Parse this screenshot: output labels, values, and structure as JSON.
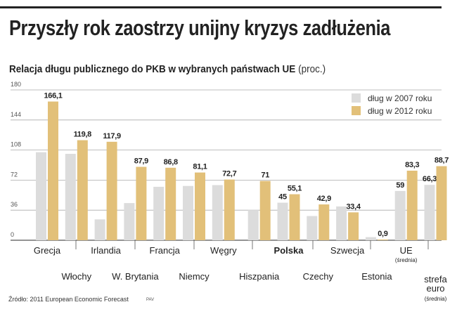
{
  "title": "Przyszły rok zaostrzy unijny kryzys zadłużenia",
  "subtitle": "Relacja długu publicznego do PKB w wybranych państwach UE",
  "subtitle_unit": "(proc.)",
  "source": "Źródło: 2011 European Economic Forecast",
  "signature": "PAV",
  "colors": {
    "series_2007": "#dcdcdc",
    "series_2012": "#e2c079"
  },
  "chart_data": {
    "type": "bar",
    "title": "Relacja długu publicznego do PKB w wybranych państwach UE (proc.)",
    "ylim": [
      0,
      180
    ],
    "yticks": [
      "0",
      "36",
      "72",
      "108",
      "144",
      "180"
    ],
    "grid": true,
    "legend_placement": "top-right",
    "categories": [
      [
        "Grecja"
      ],
      [
        "Włochy"
      ],
      [
        "Irlandia"
      ],
      [
        "W. Brytania"
      ],
      [
        "Francja"
      ],
      [
        "Niemcy"
      ],
      [
        "Węgry"
      ],
      [
        "Hiszpania"
      ],
      [
        "Polska"
      ],
      [
        "Czechy"
      ],
      [
        "Szwecja"
      ],
      [
        "Estonia"
      ],
      [
        "UE",
        "(średnia)"
      ],
      [
        "strefa",
        "euro",
        "(średnia)"
      ]
    ],
    "series": [
      {
        "name": "dług w 2007 roku",
        "values": [
          105.4,
          103.5,
          25,
          44.5,
          64,
          65,
          66,
          36.1,
          45,
          29,
          40.5,
          3.7,
          59,
          66.3
        ],
        "labels": [
          "",
          "",
          "",
          "",
          "",
          "",
          "",
          "",
          "45",
          "",
          "",
          "",
          "59",
          "66,3"
        ]
      },
      {
        "name": "dług w 2012 roku",
        "values": [
          166.1,
          119.8,
          117.9,
          87.9,
          86.8,
          81.1,
          72.7,
          71,
          55.1,
          42.9,
          33.4,
          0.9,
          83.3,
          88.7
        ],
        "labels": [
          "166,1",
          "119,8",
          "117,9",
          "87,9",
          "86,8",
          "81,1",
          "72,7",
          "71",
          "55,1",
          "42,9",
          "33,4",
          "0,9",
          "83,3",
          "88,7"
        ]
      }
    ]
  }
}
